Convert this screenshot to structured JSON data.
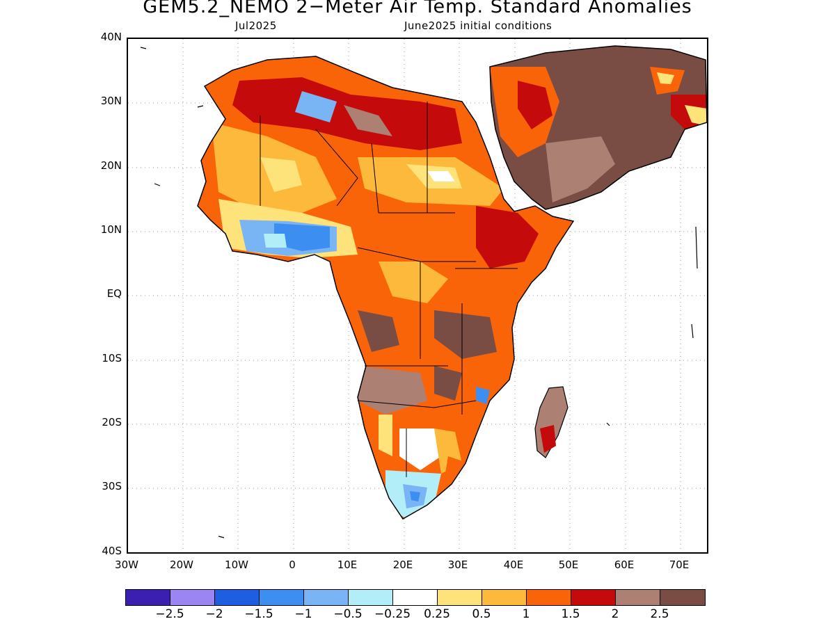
{
  "title": "GEM5.2_NEMO 2−Meter Air Temp. Standard Anomalies",
  "subtitle_left": "Jul2025",
  "subtitle_right": "June2025 initial conditions",
  "map": {
    "lat_labels": [
      "40N",
      "30N",
      "20N",
      "10N",
      "EQ",
      "10S",
      "20S",
      "30S",
      "40S"
    ],
    "lon_labels": [
      "30W",
      "20W",
      "10W",
      "0",
      "10E",
      "20E",
      "30E",
      "40E",
      "50E",
      "60E",
      "70E"
    ]
  },
  "legend": {
    "colors": [
      "#3a1fb0",
      "#9a85f2",
      "#1d5fe0",
      "#3c8ef0",
      "#79b5f5",
      "#b2eef8",
      "#ffffff",
      "#fee27a",
      "#fdb93b",
      "#fa6408",
      "#c40a0a",
      "#ad8074",
      "#7a4d44"
    ],
    "labels": [
      "−2.5",
      "−2",
      "−1.5",
      "−1",
      "−0.5",
      "−0.25",
      "0.25",
      "0.5",
      "1",
      "1.5",
      "2",
      "2.5"
    ]
  }
}
